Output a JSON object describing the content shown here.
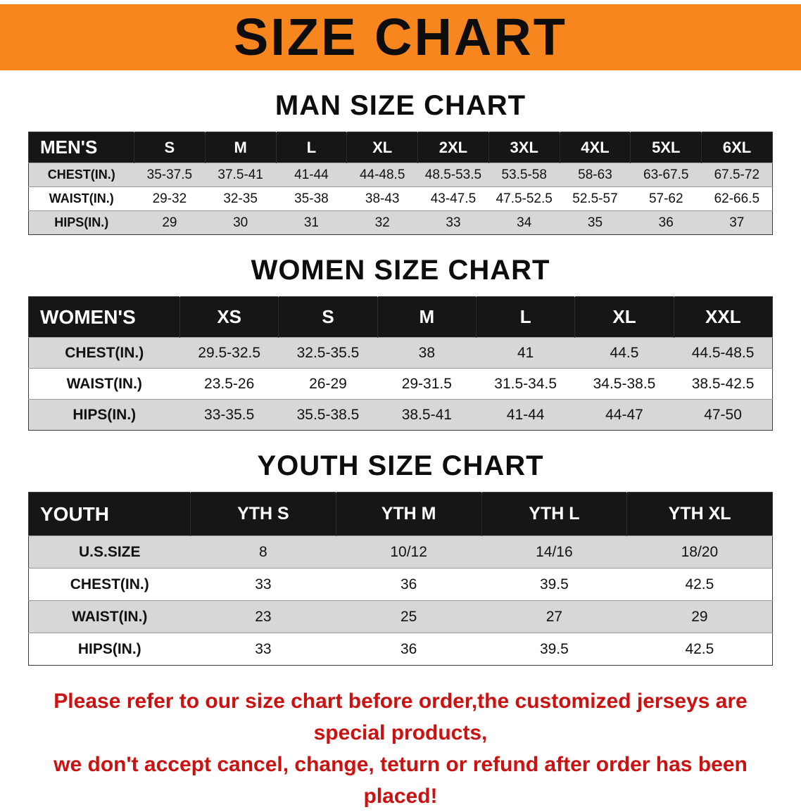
{
  "banner": {
    "title": "SIZE CHART",
    "bg_color": "#f6861d",
    "text_color": "#0d0d0d"
  },
  "sections": [
    {
      "id": "men",
      "heading": "MAN SIZE CHART",
      "table": {
        "header": [
          "MEN'S",
          "S",
          "M",
          "L",
          "XL",
          "2XL",
          "3XL",
          "4XL",
          "5XL",
          "6XL"
        ],
        "rows": [
          {
            "label": "CHEST(IN.)",
            "values": [
              "35-37.5",
              "37.5-41",
              "41-44",
              "44-48.5",
              "48.5-53.5",
              "53.5-58",
              "58-63",
              "63-67.5",
              "67.5-72"
            ]
          },
          {
            "label": "WAIST(IN.)",
            "values": [
              "29-32",
              "32-35",
              "35-38",
              "38-43",
              "43-47.5",
              "47.5-52.5",
              "52.5-57",
              "57-62",
              "62-66.5"
            ]
          },
          {
            "label": "HIPS(IN.)",
            "values": [
              "29",
              "30",
              "31",
              "32",
              "33",
              "34",
              "35",
              "36",
              "37"
            ]
          }
        ]
      }
    },
    {
      "id": "women",
      "heading": "WOMEN SIZE CHART",
      "table": {
        "header": [
          "WOMEN'S",
          "XS",
          "S",
          "M",
          "L",
          "XL",
          "XXL"
        ],
        "rows": [
          {
            "label": "CHEST(IN.)",
            "values": [
              "29.5-32.5",
              "32.5-35.5",
              "38",
              "41",
              "44.5",
              "44.5-48.5"
            ]
          },
          {
            "label": "WAIST(IN.)",
            "values": [
              "23.5-26",
              "26-29",
              "29-31.5",
              "31.5-34.5",
              "34.5-38.5",
              "38.5-42.5"
            ]
          },
          {
            "label": "HIPS(IN.)",
            "values": [
              "33-35.5",
              "35.5-38.5",
              "38.5-41",
              "41-44",
              "44-47",
              "47-50"
            ]
          }
        ]
      }
    },
    {
      "id": "youth",
      "heading": "YOUTH SIZE CHART",
      "table": {
        "header": [
          "YOUTH",
          "YTH S",
          "YTH M",
          "YTH L",
          "YTH XL"
        ],
        "rows": [
          {
            "label": "U.S.SIZE",
            "values": [
              "8",
              "10/12",
              "14/16",
              "18/20"
            ]
          },
          {
            "label": "CHEST(IN.)",
            "values": [
              "33",
              "36",
              "39.5",
              "42.5"
            ]
          },
          {
            "label": "WAIST(IN.)",
            "values": [
              "23",
              "25",
              "27",
              "29"
            ]
          },
          {
            "label": "HIPS(IN.)",
            "values": [
              "33",
              "36",
              "39.5",
              "42.5"
            ]
          }
        ]
      }
    }
  ],
  "footer": {
    "lines": [
      "Please refer to our size chart before order,the customized jerseys are special products,",
      "we don't accept cancel, change, teturn or refund after order has been placed!"
    ],
    "text_color": "#cc1111"
  }
}
